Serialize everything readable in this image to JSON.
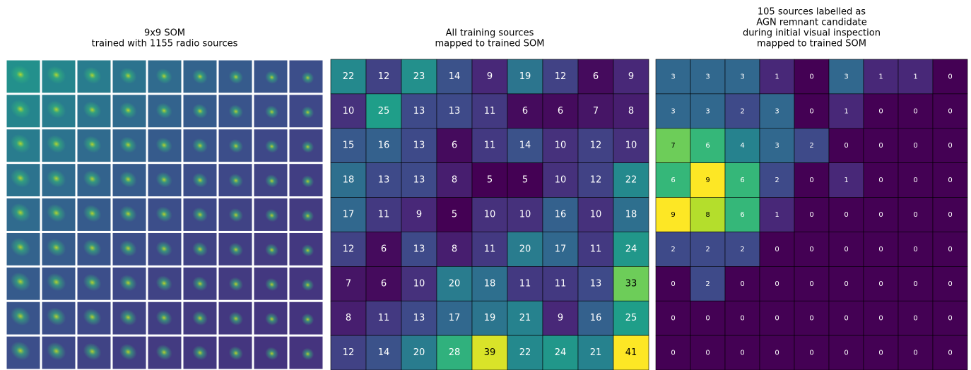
{
  "chart_data": [
    {
      "type": "image-grid",
      "title": [
        "9x9 SOM",
        "trained with 1155 radio sources"
      ],
      "rows": 9,
      "cols": 9
    },
    {
      "type": "heatmap",
      "title": [
        "All training sources",
        "mapped to trained SOM"
      ],
      "values": [
        [
          22,
          12,
          23,
          14,
          9,
          19,
          12,
          6,
          9
        ],
        [
          10,
          25,
          13,
          13,
          11,
          6,
          6,
          7,
          8
        ],
        [
          15,
          16,
          13,
          6,
          11,
          14,
          10,
          12,
          10
        ],
        [
          18,
          13,
          13,
          8,
          5,
          5,
          10,
          12,
          22
        ],
        [
          17,
          11,
          9,
          5,
          10,
          10,
          16,
          10,
          18
        ],
        [
          12,
          6,
          13,
          8,
          11,
          20,
          17,
          11,
          24
        ],
        [
          7,
          6,
          10,
          20,
          18,
          11,
          11,
          13,
          33
        ],
        [
          8,
          11,
          13,
          17,
          19,
          21,
          9,
          16,
          25
        ],
        [
          12,
          14,
          20,
          28,
          39,
          22,
          24,
          21,
          41
        ]
      ]
    },
    {
      "type": "heatmap",
      "title": [
        "105 sources labelled as",
        "AGN remnant candidate",
        "during initial visual inspection",
        "mapped to trained SOM"
      ],
      "values": [
        [
          3,
          3,
          3,
          1,
          0,
          3,
          1,
          1,
          0
        ],
        [
          3,
          3,
          2,
          3,
          0,
          1,
          0,
          0,
          0
        ],
        [
          7,
          6,
          4,
          3,
          2,
          0,
          0,
          0,
          0
        ],
        [
          6,
          9,
          6,
          2,
          0,
          1,
          0,
          0,
          0
        ],
        [
          9,
          8,
          6,
          1,
          0,
          0,
          0,
          0,
          0
        ],
        [
          2,
          2,
          2,
          0,
          0,
          0,
          0,
          0,
          0
        ],
        [
          0,
          2,
          0,
          0,
          0,
          0,
          0,
          0,
          0
        ],
        [
          0,
          0,
          0,
          0,
          0,
          0,
          0,
          0,
          0
        ],
        [
          0,
          0,
          0,
          0,
          0,
          0,
          0,
          0,
          0
        ]
      ]
    }
  ]
}
